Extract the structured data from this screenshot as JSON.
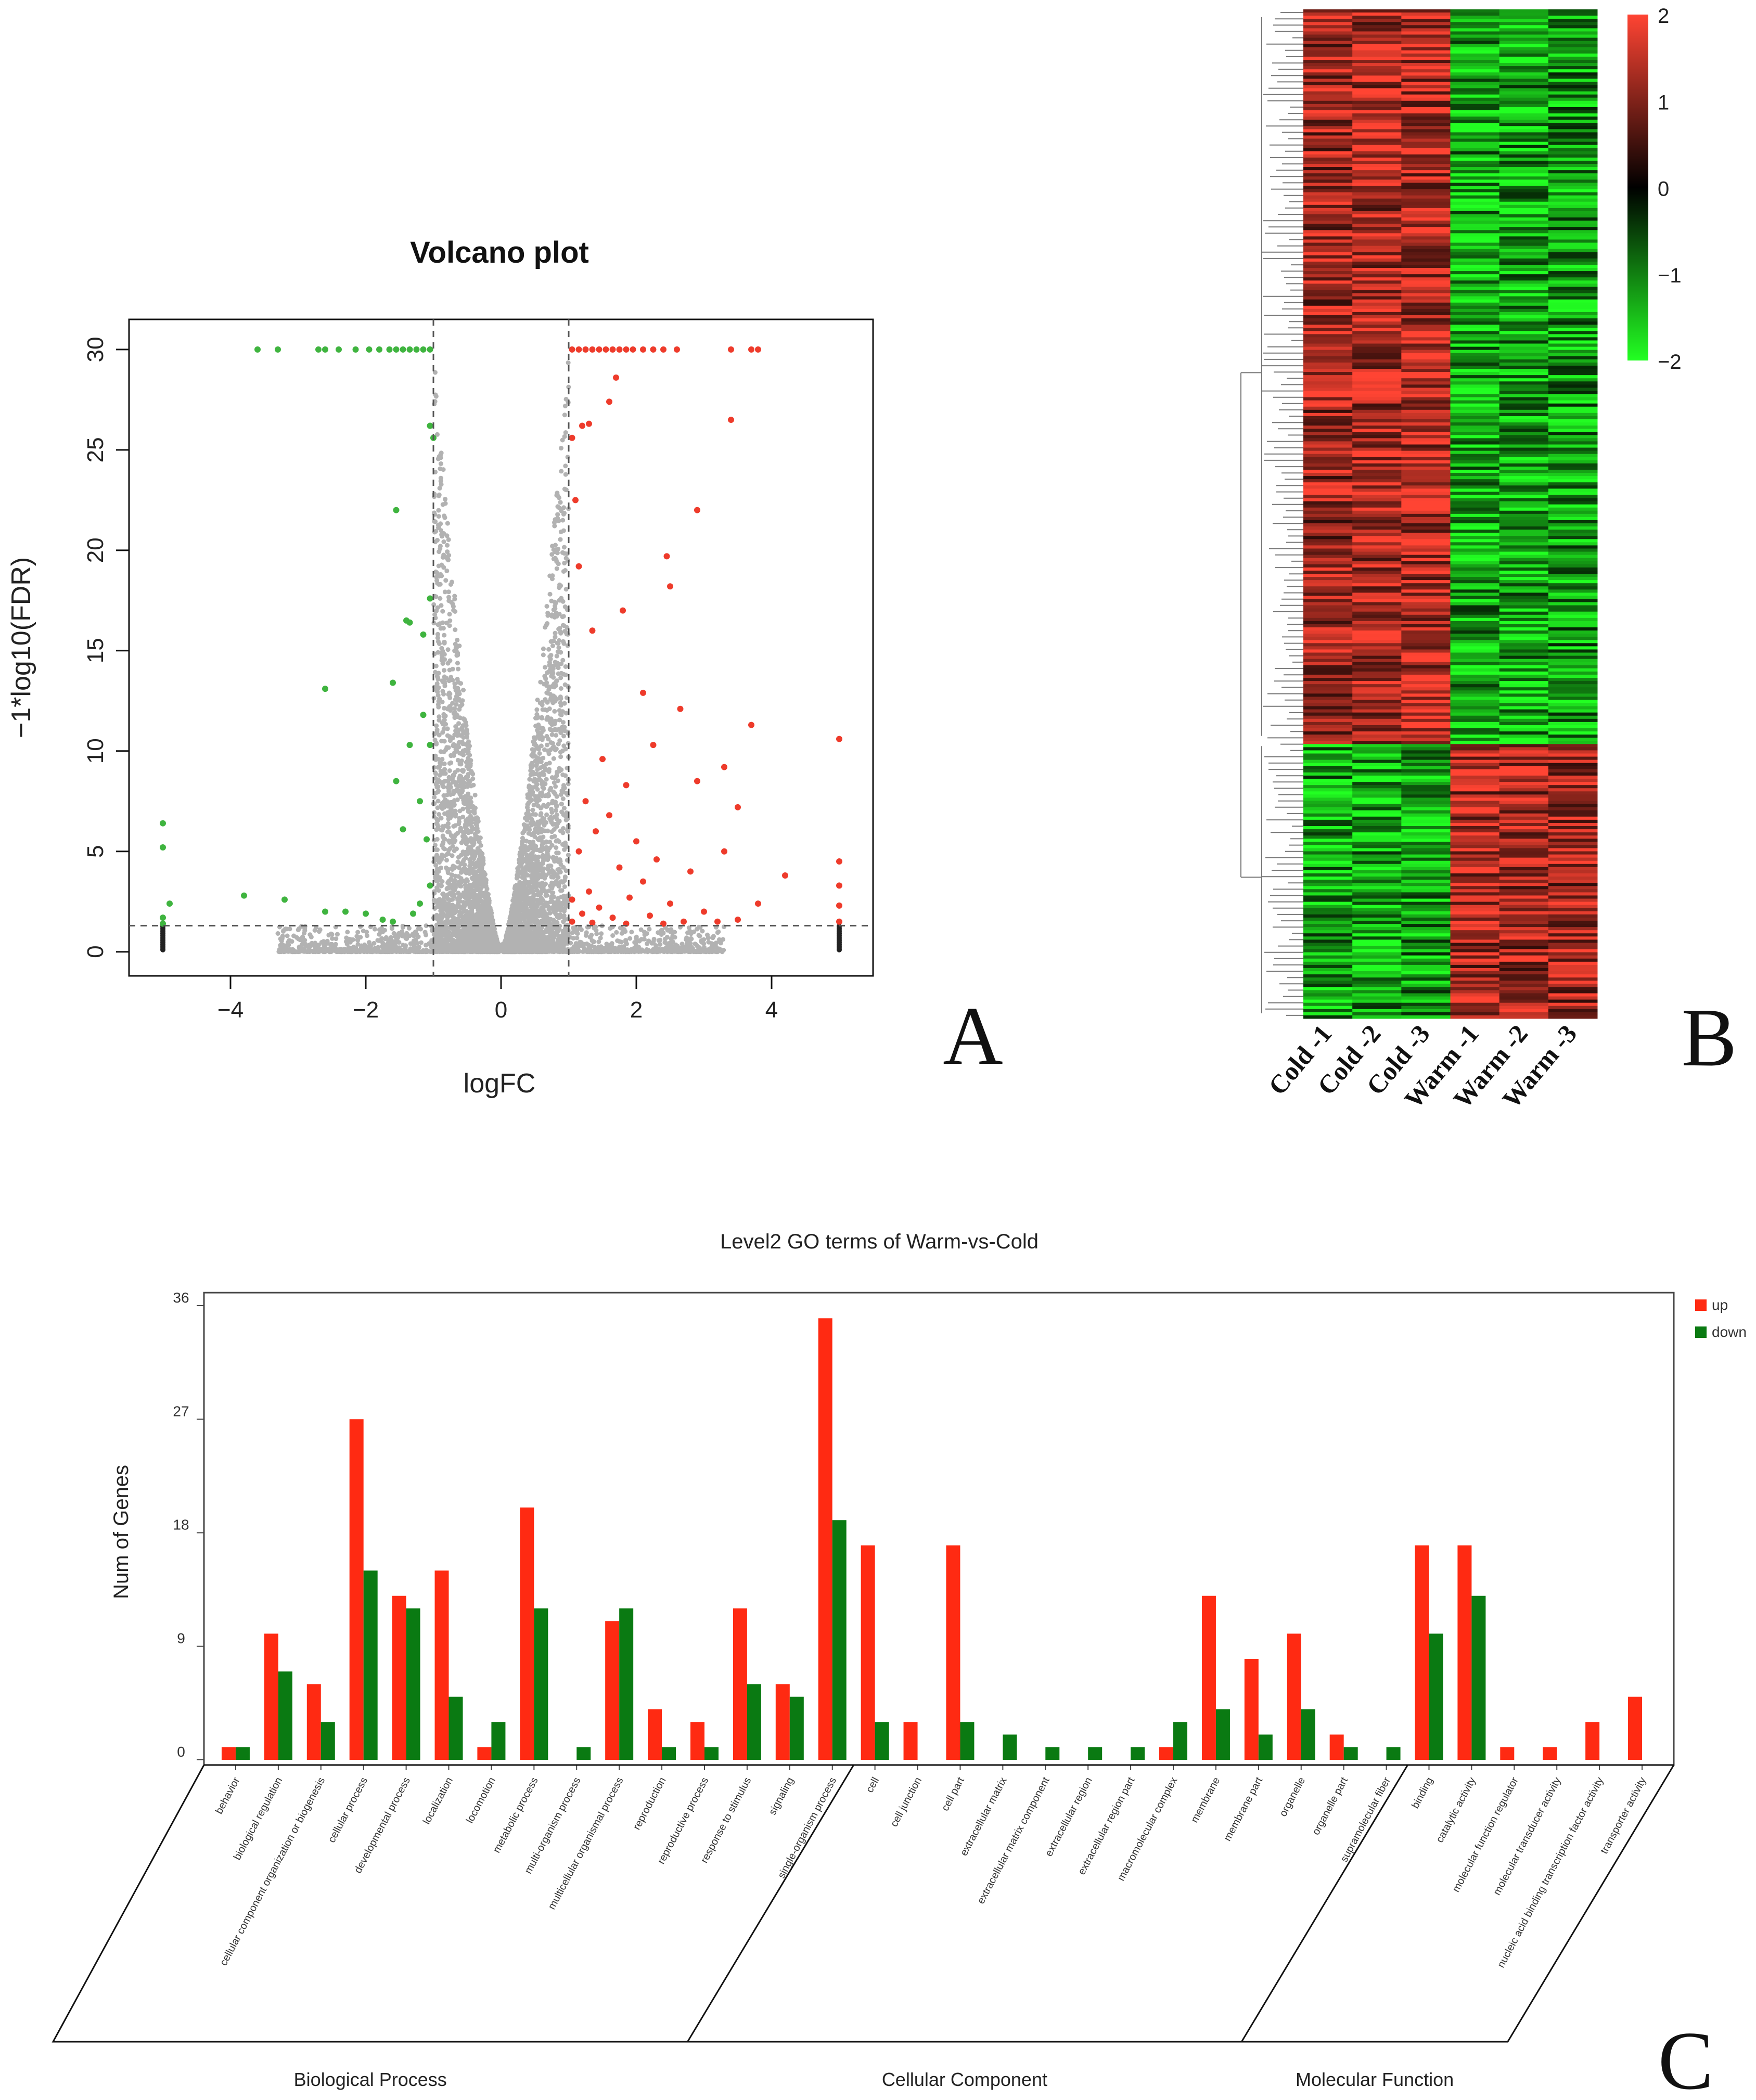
{
  "panel_labels": {
    "a": "A",
    "b": "B",
    "c": "C"
  },
  "chart_data": [
    {
      "type": "scatter",
      "title": "Volcano plot",
      "xlabel": "logFC",
      "ylabel": "−1*log10(FDR)",
      "xlim": [
        -5.5,
        5.5
      ],
      "ylim": [
        -1.2,
        31.5
      ],
      "xticks": [
        "−4",
        "−2",
        "0",
        "2",
        "4"
      ],
      "xtick_values": [
        -4,
        -2,
        0,
        2,
        4
      ],
      "yticks": [
        "0",
        "5",
        "10",
        "15",
        "20",
        "25",
        "30"
      ],
      "ytick_values": [
        0,
        5,
        10,
        15,
        20,
        25,
        30
      ],
      "thresholds": {
        "logFC": [
          -1,
          1
        ],
        "neg_log10_fdr": 1.3
      },
      "colors": {
        "up": "#ee3b2b",
        "down": "#3fb43f",
        "ns": "#222222"
      },
      "series": [
        {
          "points": [
            [
              1.05,
              30
            ],
            [
              1.15,
              30
            ],
            [
              1.25,
              30
            ],
            [
              1.35,
              30
            ],
            [
              1.45,
              30
            ],
            [
              1.55,
              30
            ],
            [
              1.65,
              30
            ],
            [
              1.75,
              30
            ],
            [
              1.85,
              30
            ],
            [
              1.95,
              30
            ],
            [
              2.1,
              30
            ],
            [
              2.25,
              30
            ],
            [
              2.4,
              30
            ],
            [
              2.6,
              30
            ],
            [
              3.4,
              30
            ],
            [
              3.7,
              30
            ],
            [
              3.8,
              30
            ],
            [
              1.7,
              28.6
            ],
            [
              1.6,
              27.4
            ],
            [
              1.2,
              26.2
            ],
            [
              1.3,
              26.3
            ],
            [
              1.05,
              25.6
            ],
            [
              3.4,
              26.5
            ],
            [
              2.9,
              22
            ],
            [
              1.1,
              22.5
            ],
            [
              2.45,
              19.7
            ],
            [
              2.5,
              18.2
            ],
            [
              1.15,
              19.2
            ],
            [
              1.8,
              17
            ],
            [
              1.35,
              16
            ],
            [
              2.1,
              12.9
            ],
            [
              3.7,
              11.3
            ],
            [
              2.65,
              12.1
            ],
            [
              5.0,
              10.6
            ],
            [
              2.25,
              10.3
            ],
            [
              1.5,
              9.6
            ],
            [
              3.3,
              9.2
            ],
            [
              2.9,
              8.5
            ],
            [
              1.85,
              8.3
            ],
            [
              3.5,
              7.2
            ],
            [
              4.2,
              3.8
            ],
            [
              3.8,
              2.4
            ],
            [
              5.0,
              4.5
            ],
            [
              5.0,
              3.3
            ],
            [
              5.0,
              2.3
            ],
            [
              5.0,
              1.5
            ],
            [
              1.25,
              7.5
            ],
            [
              1.6,
              6.8
            ],
            [
              1.4,
              6
            ],
            [
              2.0,
              5.5
            ],
            [
              1.15,
              5.0
            ],
            [
              2.3,
              4.6
            ],
            [
              1.75,
              4.2
            ],
            [
              3.3,
              5
            ],
            [
              2.8,
              4
            ],
            [
              2.1,
              3.5
            ],
            [
              1.3,
              3
            ],
            [
              1.9,
              2.7
            ],
            [
              1.05,
              2.6
            ],
            [
              2.5,
              2.4
            ],
            [
              1.45,
              2.2
            ],
            [
              3.0,
              2
            ],
            [
              1.2,
              1.9
            ],
            [
              2.2,
              1.8
            ],
            [
              1.65,
              1.7
            ],
            [
              3.5,
              1.6
            ],
            [
              1.05,
              1.5
            ],
            [
              2.7,
              1.5
            ],
            [
              1.35,
              1.45
            ],
            [
              1.85,
              1.4
            ],
            [
              2.4,
              1.4
            ],
            [
              3.2,
              1.5
            ]
          ],
          "color": "#ee3b2b"
        },
        {
          "points": [
            [
              -1.05,
              30
            ],
            [
              -1.15,
              30
            ],
            [
              -1.25,
              30
            ],
            [
              -1.35,
              30
            ],
            [
              -1.45,
              30
            ],
            [
              -1.55,
              30
            ],
            [
              -1.65,
              30
            ],
            [
              -1.8,
              30
            ],
            [
              -1.95,
              30
            ],
            [
              -2.15,
              30
            ],
            [
              -2.4,
              30
            ],
            [
              -2.6,
              30
            ],
            [
              -2.7,
              30
            ],
            [
              -3.3,
              30
            ],
            [
              -3.6,
              30
            ],
            [
              -1.05,
              26.2
            ],
            [
              -1.0,
              25.6
            ],
            [
              -1.55,
              22
            ],
            [
              -1.05,
              17.6
            ],
            [
              -1.4,
              16.5
            ],
            [
              -1.35,
              16.4
            ],
            [
              -1.15,
              15.8
            ],
            [
              -2.6,
              13.1
            ],
            [
              -1.6,
              13.4
            ],
            [
              -1.15,
              11.8
            ],
            [
              -1.35,
              10.3
            ],
            [
              -1.05,
              10.3
            ],
            [
              -1.55,
              8.5
            ],
            [
              -1.2,
              7.5
            ],
            [
              -1.45,
              6.1
            ],
            [
              -1.1,
              5.6
            ],
            [
              -5.0,
              6.4
            ],
            [
              -5.0,
              5.2
            ],
            [
              -4.9,
              2.4
            ],
            [
              -3.8,
              2.8
            ],
            [
              -3.2,
              2.6
            ],
            [
              -2.6,
              2.0
            ],
            [
              -2.3,
              2.0
            ],
            [
              -2.0,
              1.9
            ],
            [
              -1.75,
              1.6
            ],
            [
              -1.6,
              1.5
            ],
            [
              -1.3,
              1.9
            ],
            [
              -1.2,
              2.4
            ],
            [
              -1.05,
              3.3
            ],
            [
              -5.0,
              1.7
            ],
            [
              -5.0,
              1.4
            ]
          ],
          "color": "#3fb43f"
        }
      ]
    },
    {
      "type": "heatmap",
      "columns": [
        "Cold -1",
        "Cold -2",
        "Cold -3",
        "Warm -1",
        "Warm -2",
        "Warm -3"
      ],
      "colorbar_ticks": [
        "2",
        "1",
        "0",
        "−1",
        "−2"
      ],
      "colorbar_values": [
        2,
        1,
        0,
        -1,
        -2
      ],
      "scale": {
        "low": "#22ff22",
        "mid": "#000000",
        "high": "#ff4433"
      },
      "blocks": [
        {
          "fraction": 0.728,
          "group": "up in Cold",
          "values": [
            1.3,
            1.4,
            1.45,
            -1.3,
            -1.3,
            -1.2
          ]
        },
        {
          "fraction": 0.272,
          "group": "up in Warm",
          "values": [
            -1.25,
            -1.3,
            -1.2,
            1.35,
            1.3,
            1.3
          ]
        }
      ]
    },
    {
      "type": "bar",
      "title": "Level2 GO terms of Warm-vs-Cold",
      "ylabel": "Num of Genes",
      "ylim": [
        0,
        36
      ],
      "yticks": [
        "0",
        "9",
        "18",
        "27",
        "36"
      ],
      "ytick_values": [
        0,
        9,
        18,
        27,
        36
      ],
      "legend": "right",
      "categories": [
        "behavior",
        "biological regulation",
        "cellular component organization or biogenesis",
        "cellular process",
        "developmental process",
        "localization",
        "locomotion",
        "metabolic process",
        "multi-organism process",
        "multicellular organismal process",
        "reproduction",
        "reproductive process",
        "response to stimulus",
        "signaling",
        "single-organism process",
        "cell",
        "cell junction",
        "cell part",
        "extracellular matrix",
        "extracellular matrix component",
        "extracellular region",
        "extracellular region part",
        "macromolecular complex",
        "membrane",
        "membrane part",
        "organelle",
        "organelle part",
        "supramolecular fiber",
        "binding",
        "catalytic activity",
        "molecular function regulator",
        "molecular transducer activity",
        "nucleic acid binding transcription factor activity",
        "transporter activity"
      ],
      "series": [
        {
          "name": "up",
          "color": "#ff2a12",
          "values": [
            1,
            10,
            6,
            27,
            13,
            15,
            1,
            20,
            0,
            11,
            4,
            3,
            12,
            6,
            35,
            17,
            3,
            17,
            0,
            0,
            0,
            0,
            1,
            13,
            8,
            10,
            2,
            0,
            17,
            17,
            1,
            1,
            3,
            5
          ]
        },
        {
          "name": "down",
          "color": "#0a7a12",
          "values": [
            1,
            7,
            3,
            15,
            12,
            5,
            3,
            12,
            1,
            12,
            1,
            1,
            6,
            5,
            19,
            3,
            0,
            3,
            2,
            1,
            1,
            1,
            3,
            4,
            2,
            4,
            1,
            1,
            10,
            13,
            0,
            0,
            0,
            0
          ]
        }
      ],
      "groups": [
        {
          "name": "Biological Process",
          "count": 15
        },
        {
          "name": "Cellular Component",
          "count": 13
        },
        {
          "name": "Molecular Function",
          "count": 6
        }
      ]
    }
  ]
}
